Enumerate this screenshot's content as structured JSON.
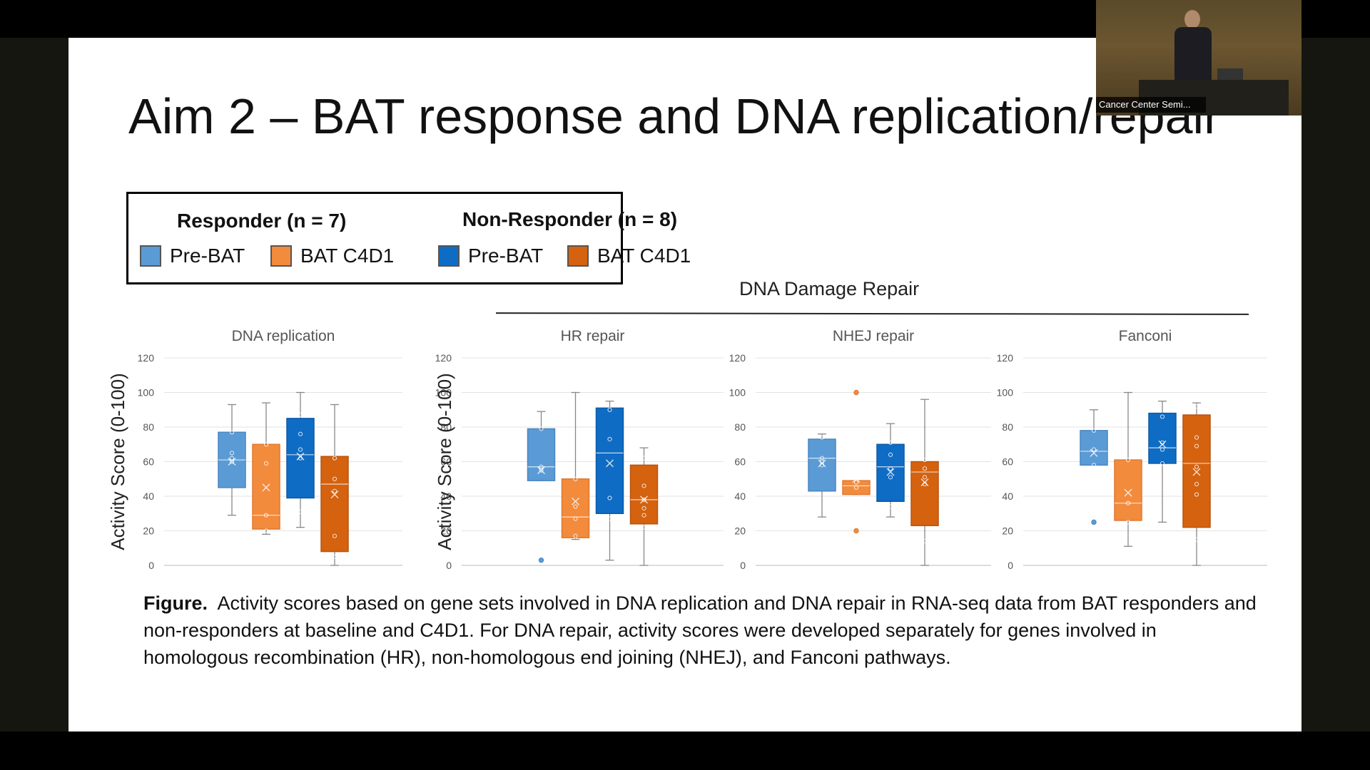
{
  "slide": {
    "title": "Aim 2 – BAT response and DNA replication/repair",
    "group_header": "DNA Damage Repair",
    "caption_bold": "Figure.",
    "caption_text": "Activity scores based on gene sets involved in DNA replication and DNA repair in RNA-seq data from BAT responders and non-responders at baseline and C4D1. For DNA repair, activity scores were developed separately for genes involved in homologous recombination (HR), non-homologous end joining (NHEJ), and Fanconi pathways."
  },
  "legend": {
    "responder_title": "Responder (n = 7)",
    "nonresponder_title": "Non-Responder (n = 8)",
    "items": [
      {
        "label": "Pre-BAT",
        "color": "#5b9bd5"
      },
      {
        "label": "BAT C4D1",
        "color": "#f28b3c"
      },
      {
        "label": "Pre-BAT",
        "color": "#0f6cc4"
      },
      {
        "label": "BAT C4D1",
        "color": "#d4620f"
      }
    ]
  },
  "webcam": {
    "label": "Cancer Center Semi..."
  },
  "chart_data": {
    "type": "box",
    "ylim": [
      0,
      120
    ],
    "yticks": [
      0,
      20,
      40,
      60,
      80,
      100,
      120
    ],
    "ylabel": "Activity Score (0-100)",
    "series_colors": {
      "fill": [
        "#5b9bd5",
        "#f28b3c",
        "#0f6cc4",
        "#d4620f"
      ],
      "stroke": [
        "#4a86c0",
        "#e07830",
        "#0b5aa6",
        "#b85410"
      ]
    },
    "panels": [
      {
        "title": "DNA replication",
        "show_ylabel": true,
        "boxes": [
          {
            "min": 29,
            "q1": 45,
            "median": 61,
            "q3": 77,
            "max": 93,
            "mean": 60,
            "points": [
              77,
              65,
              62,
              60
            ]
          },
          {
            "min": 18,
            "q1": 21,
            "median": 29,
            "q3": 70,
            "max": 94,
            "mean": 45,
            "points": [
              70,
              59,
              29,
              20
            ]
          },
          {
            "min": 22,
            "q1": 39,
            "median": 64,
            "q3": 85,
            "max": 100,
            "mean": 63,
            "points": [
              87,
              76,
              67,
              62,
              31
            ]
          },
          {
            "min": 0,
            "q1": 8,
            "median": 47,
            "q3": 63,
            "max": 93,
            "mean": 41,
            "points": [
              62,
              50,
              43,
              17,
              5
            ]
          }
        ]
      },
      {
        "title": "HR repair",
        "show_ylabel": true,
        "boxes": [
          {
            "min": 49,
            "q1": 49,
            "median": 57,
            "q3": 79,
            "max": 89,
            "mean": 55,
            "points": [
              79,
              57,
              55
            ],
            "outliers": [
              3
            ]
          },
          {
            "min": 15,
            "q1": 16,
            "median": 28,
            "q3": 50,
            "max": 100,
            "mean": 37,
            "points": [
              50,
              34,
              27,
              17
            ]
          },
          {
            "min": 3,
            "q1": 30,
            "median": 65,
            "q3": 91,
            "max": 95,
            "mean": 59,
            "points": [
              90,
              73,
              39,
              27
            ]
          },
          {
            "min": 0,
            "q1": 24,
            "median": 38,
            "q3": 58,
            "max": 68,
            "mean": 38,
            "points": [
              62,
              46,
              38,
              33,
              29,
              22
            ]
          }
        ]
      },
      {
        "title": "NHEJ repair",
        "show_ylabel": false,
        "boxes": [
          {
            "min": 28,
            "q1": 43,
            "median": 62,
            "q3": 73,
            "max": 76,
            "mean": 59,
            "points": [
              74,
              62,
              60,
              58
            ]
          },
          {
            "min": 41,
            "q1": 41,
            "median": 46,
            "q3": 49,
            "max": 49,
            "mean": 50,
            "points": [
              48,
              45
            ],
            "outliers": [
              100,
              20
            ]
          },
          {
            "min": 28,
            "q1": 37,
            "median": 57,
            "q3": 70,
            "max": 82,
            "mean": 54,
            "points": [
              71,
              64,
              56,
              51,
              34
            ]
          },
          {
            "min": 0,
            "q1": 23,
            "median": 54,
            "q3": 60,
            "max": 96,
            "mean": 48,
            "points": [
              61,
              56,
              51,
              47,
              14
            ]
          }
        ]
      },
      {
        "title": "Fanconi",
        "show_ylabel": false,
        "boxes": [
          {
            "min": 58,
            "q1": 58,
            "median": 66,
            "q3": 78,
            "max": 90,
            "mean": 65,
            "points": [
              78,
              67,
              58
            ],
            "outliers": [
              25
            ]
          },
          {
            "min": 11,
            "q1": 26,
            "median": 36,
            "q3": 61,
            "max": 100,
            "mean": 42,
            "points": [
              61,
              36,
              25
            ]
          },
          {
            "min": 25,
            "q1": 59,
            "median": 68,
            "q3": 88,
            "max": 95,
            "mean": 70,
            "points": [
              86,
              71,
              67,
              59
            ]
          },
          {
            "min": 0,
            "q1": 22,
            "median": 59,
            "q3": 87,
            "max": 94,
            "mean": 54,
            "points": [
              92,
              74,
              69,
              57,
              47,
              41,
              15
            ]
          }
        ]
      }
    ]
  }
}
